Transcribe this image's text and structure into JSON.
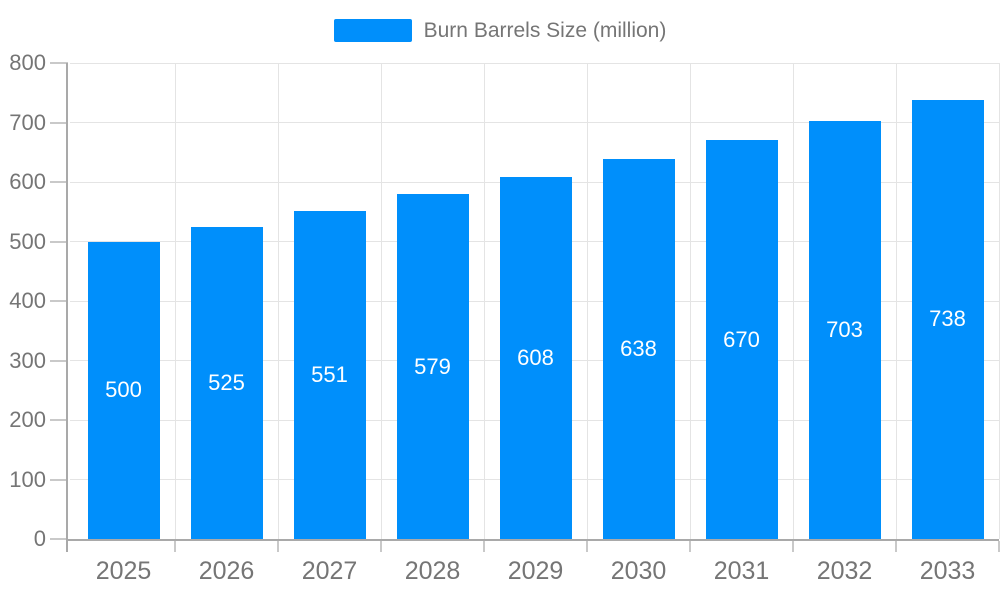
{
  "legend": {
    "label": "Burn Barrels Size (million)"
  },
  "chart_data": {
    "type": "bar",
    "title": "Burn Barrels Size (million)",
    "categories": [
      "2025",
      "2026",
      "2027",
      "2028",
      "2029",
      "2030",
      "2031",
      "2032",
      "2033"
    ],
    "values": [
      500,
      525,
      551,
      579,
      608,
      638,
      670,
      703,
      738
    ],
    "xlabel": "",
    "ylabel": "",
    "ylim": [
      0,
      800
    ],
    "ytick_step": 100,
    "grid": true,
    "legend_position": "top",
    "colors": {
      "bar": "#008FFB",
      "value_label": "#ffffff",
      "axis_text": "#757575",
      "grid_line": "#e4e4e4",
      "axis_line": "#a9a9a9",
      "tick": "#c9c9c9"
    }
  }
}
